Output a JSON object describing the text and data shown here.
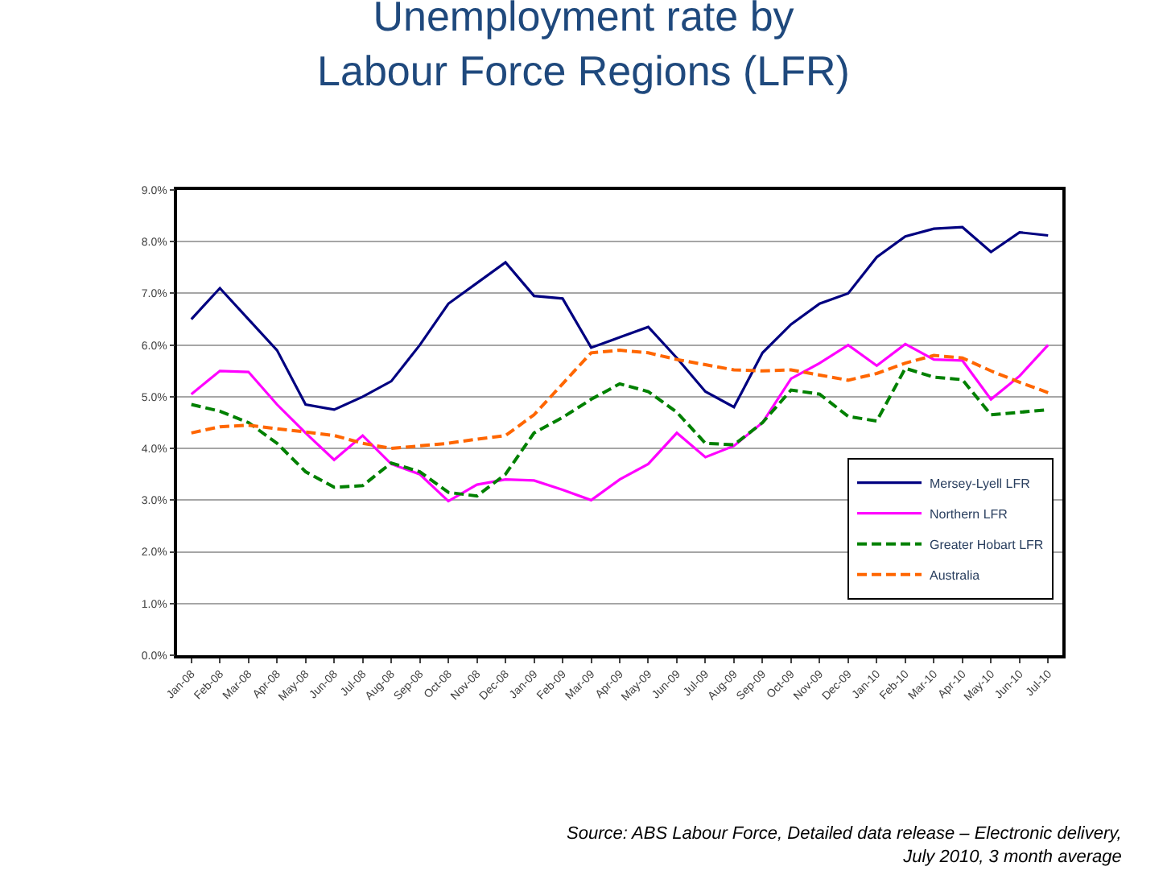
{
  "chart_data": {
    "type": "line",
    "title": "Unemployment rate by\nLabour Force Regions (LFR)",
    "categories": [
      "Jan-08",
      "Feb-08",
      "Mar-08",
      "Apr-08",
      "May-08",
      "Jun-08",
      "Jul-08",
      "Aug-08",
      "Sep-08",
      "Oct-08",
      "Nov-08",
      "Dec-08",
      "Jan-09",
      "Feb-09",
      "Mar-09",
      "Apr-09",
      "May-09",
      "Jun-09",
      "Jul-09",
      "Aug-09",
      "Sep-09",
      "Oct-09",
      "Nov-09",
      "Dec-09",
      "Jan-10",
      "Feb-10",
      "Mar-10",
      "Apr-10",
      "May-10",
      "Jun-10",
      "Jul-10"
    ],
    "series": [
      {
        "name": "Mersey-Lyell LFR",
        "color": "#000080",
        "line_style": "solid",
        "values": [
          6.5,
          7.1,
          6.5,
          5.9,
          4.85,
          4.75,
          5.0,
          5.3,
          6.0,
          6.8,
          7.2,
          7.6,
          6.95,
          6.9,
          5.95,
          6.15,
          6.35,
          5.75,
          5.1,
          4.8,
          5.85,
          6.4,
          6.8,
          7.0,
          7.7,
          8.1,
          8.25,
          8.28,
          7.8,
          8.18,
          8.12
        ]
      },
      {
        "name": "Northern LFR",
        "color": "#ff00ff",
        "line_style": "solid",
        "values": [
          5.05,
          5.5,
          5.48,
          4.85,
          4.3,
          3.78,
          4.25,
          3.7,
          3.5,
          2.98,
          3.3,
          3.4,
          3.38,
          3.2,
          3.0,
          3.4,
          3.7,
          4.3,
          3.83,
          4.05,
          4.5,
          5.35,
          5.65,
          6.0,
          5.6,
          6.02,
          5.72,
          5.7,
          4.95,
          5.4,
          6.0
        ]
      },
      {
        "name": "Greater Hobart LFR",
        "color": "#008000",
        "line_style": "dashed",
        "values": [
          4.85,
          4.72,
          4.5,
          4.1,
          3.55,
          3.25,
          3.28,
          3.72,
          3.55,
          3.15,
          3.08,
          3.5,
          4.3,
          4.6,
          4.95,
          5.25,
          5.1,
          4.7,
          4.1,
          4.07,
          4.5,
          5.13,
          5.05,
          4.62,
          4.53,
          5.55,
          5.38,
          5.33,
          4.65,
          4.7,
          4.75
        ]
      },
      {
        "name": "Australia",
        "color": "#ff6600",
        "line_style": "dashed",
        "values": [
          4.3,
          4.42,
          4.45,
          4.38,
          4.32,
          4.25,
          4.1,
          4.0,
          4.05,
          4.1,
          4.18,
          4.25,
          4.65,
          5.25,
          5.85,
          5.9,
          5.85,
          5.72,
          5.62,
          5.52,
          5.5,
          5.52,
          5.42,
          5.32,
          5.45,
          5.65,
          5.8,
          5.75,
          5.5,
          5.28,
          5.08
        ]
      }
    ],
    "ylim": [
      0,
      9
    ],
    "yticks": [
      {
        "value": 0,
        "label": "0.0%"
      },
      {
        "value": 1,
        "label": "1.0%"
      },
      {
        "value": 2,
        "label": "2.0%"
      },
      {
        "value": 3,
        "label": "3.0%"
      },
      {
        "value": 4,
        "label": "4.0%"
      },
      {
        "value": 5,
        "label": "5.0%"
      },
      {
        "value": 6,
        "label": "6.0%"
      },
      {
        "value": 7,
        "label": "7.0%"
      },
      {
        "value": 8,
        "label": "8.0%"
      },
      {
        "value": 9,
        "label": "9.0%"
      }
    ],
    "grid": "y",
    "legend": "bottom right",
    "marker": "none",
    "annotations": [
      "Source: ABS Labour Force, Detailed data release – Electronic delivery,\nJuly 2010, 3 month average"
    ]
  }
}
